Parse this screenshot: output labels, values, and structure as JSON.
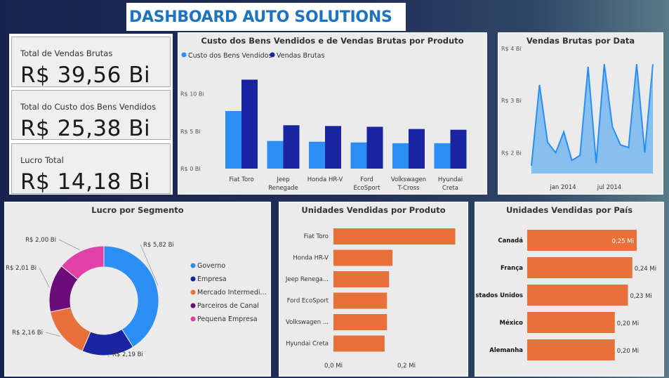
{
  "header": {
    "title": "DASHBOARD AUTO SOLUTIONS"
  },
  "kpis": [
    {
      "label": "Total de Vendas Brutas",
      "value": "R$ 39,56 Bi"
    },
    {
      "label": "Total do Custo dos Bens Vendidos",
      "value": "R$ 25,38 Bi"
    },
    {
      "label": "Lucro Total",
      "value": "R$ 14,18 Bi"
    }
  ],
  "colors": {
    "cost": "#2b8ef5",
    "sales": "#1a23a0",
    "area_line": "#2b8ef5",
    "area_fill": "#87bfee",
    "bars": "#e8703a",
    "governo": "#2b8ef5",
    "empresa": "#1a23a0",
    "mercado": "#e8703a",
    "parceiros": "#6b0c7a",
    "pequena": "#e040a8"
  },
  "chart_data": [
    {
      "type": "bar",
      "title": "Custo dos Bens Vendidos e de Vendas Brutas por Produto",
      "categories": [
        "Fiat Toro",
        "Jeep Renegade",
        "Honda HR-V",
        "Ford EcoSport",
        "Volkswagen T-Cross",
        "Hyundai Creta"
      ],
      "category_lines": [
        [
          "Fiat Toro"
        ],
        [
          "Jeep",
          "Renegade"
        ],
        [
          "Honda HR-V"
        ],
        [
          "Ford",
          "EcoSport"
        ],
        [
          "Volkswagen",
          "T-Cross"
        ],
        [
          "Hyundai",
          "Creta"
        ]
      ],
      "series": [
        {
          "name": "Custo dos Bens Vendidos",
          "values": [
            7.7,
            3.7,
            3.6,
            3.5,
            3.4,
            3.4
          ]
        },
        {
          "name": "Vendas Brutas",
          "values": [
            11.9,
            5.8,
            5.7,
            5.6,
            5.3,
            5.2
          ]
        }
      ],
      "yticks": [
        "R$ 0 Bi",
        "R$ 5 Bi",
        "R$ 10 Bi"
      ],
      "ylim": [
        0,
        12.5
      ],
      "legend": "top-left"
    },
    {
      "type": "area",
      "title": "Vendas Brutas por Data",
      "values": [
        1.75,
        3.3,
        2.2,
        2.0,
        2.4,
        1.85,
        1.95,
        3.65,
        1.8,
        3.7,
        2.5,
        2.15,
        2.1,
        3.7,
        2.0,
        3.7
      ],
      "yticks": [
        "R$ 2 Bi",
        "R$ 3 Bi",
        "R$ 4 Bi"
      ],
      "xticks": [
        "jan 2014",
        "jul 2014"
      ],
      "ylim": [
        1.6,
        4.0
      ]
    },
    {
      "type": "pie",
      "title": "Lucro por Segmento",
      "slices": [
        {
          "name": "Governo",
          "value": 5.82,
          "label": "R$ 5,82 Bi"
        },
        {
          "name": "Empresa",
          "value": 2.19,
          "label": "R$ 2,19 Bi"
        },
        {
          "name": "Mercado Intermedi...",
          "value": 2.16,
          "label": "R$ 2,16 Bi"
        },
        {
          "name": "Parceiros de Canal",
          "value": 2.01,
          "label": "R$ 2,01 Bi"
        },
        {
          "name": "Pequena Empresa",
          "value": 2.0,
          "label": "R$ 2,00 Bi"
        }
      ],
      "legend": "right"
    },
    {
      "type": "bar",
      "title": "Unidades Vendidas por Produto",
      "categories": [
        "Fiat Toro",
        "Honda HR-V",
        "Jeep Renega...",
        "Ford EcoSport",
        "Volkswagen ...",
        "Hyundai Creta"
      ],
      "values": [
        0.355,
        0.172,
        0.162,
        0.156,
        0.156,
        0.149
      ],
      "xticks": [
        "0,0 Mi",
        "0,2 Mi"
      ],
      "xlim": [
        0,
        0.36
      ]
    },
    {
      "type": "bar",
      "title": "Unidades Vendidas por País",
      "categories": [
        "Canadá",
        "França",
        "Estados Unidos",
        "México",
        "Alemanha"
      ],
      "values": [
        0.25,
        0.24,
        0.23,
        0.2,
        0.2
      ],
      "data_labels": [
        "0,25 Mi",
        "0,24 Mi",
        "0,23 Mi",
        "0,20 Mi",
        "0,20 Mi"
      ]
    }
  ]
}
